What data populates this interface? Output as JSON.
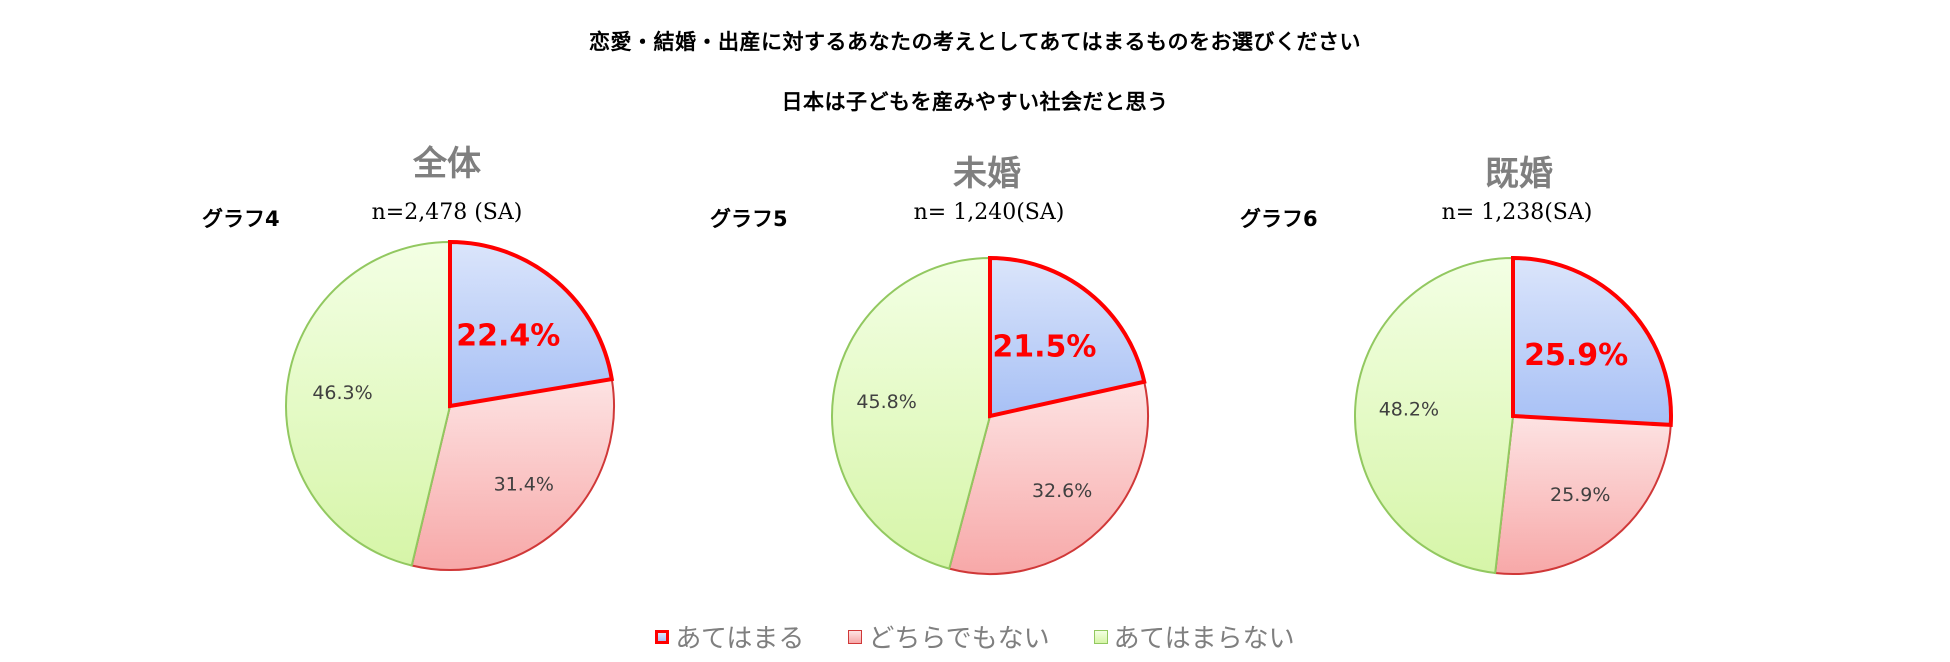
{
  "title": "恋愛・結婚・出産に対するあなたの考えとしてあてはまるものをお選びください",
  "subtitle": "日本は子どもを産みやすい社会だと思う",
  "colors": {
    "atehamaru_fill_top": "#dbe5fb",
    "atehamaru_fill_bottom": "#a7c0f5",
    "atehamaru_border": "#ff0000",
    "dochira_fill_top": "#fde3e3",
    "dochira_fill_bottom": "#f7a8a8",
    "dochira_border": "#d03838",
    "atehamaranai_fill_top": "#f3ffe4",
    "atehamaranai_fill_bottom": "#d6f5a8",
    "atehamaranai_border": "#92c860",
    "highlight_label": "#ff0000",
    "group_label": "#7f7f7f"
  },
  "legend": [
    {
      "label": "あてはまる",
      "key": "atehamaru"
    },
    {
      "label": "どちらでもない",
      "key": "dochira"
    },
    {
      "label": "あてはまらない",
      "key": "atehamaranai"
    }
  ],
  "chart_data": [
    {
      "type": "pie",
      "group": "全体",
      "graph_label": "グラフ4",
      "n_label": "n=2,478 (SA)",
      "slices": [
        {
          "label": "あてはまる",
          "value": 22.4,
          "display": "22.4%"
        },
        {
          "label": "どちらでもない",
          "value": 31.4,
          "display": "31.4%"
        },
        {
          "label": "あてはまらない",
          "value": 46.3,
          "display": "46.3%"
        }
      ]
    },
    {
      "type": "pie",
      "group": "未婚",
      "graph_label": "グラフ5",
      "n_label": "n= 1,240(SA)",
      "slices": [
        {
          "label": "あてはまる",
          "value": 21.5,
          "display": "21.5%"
        },
        {
          "label": "どちらでもない",
          "value": 32.6,
          "display": "32.6%"
        },
        {
          "label": "あてはまらない",
          "value": 45.8,
          "display": "45.8%"
        }
      ]
    },
    {
      "type": "pie",
      "group": "既婚",
      "graph_label": "グラフ6",
      "n_label": "n= 1,238(SA)",
      "slices": [
        {
          "label": "あてはまる",
          "value": 25.9,
          "display": "25.9%"
        },
        {
          "label": "どちらでもない",
          "value": 25.9,
          "display": "25.9%"
        },
        {
          "label": "あてはまらない",
          "value": 48.2,
          "display": "48.2%"
        }
      ]
    }
  ]
}
